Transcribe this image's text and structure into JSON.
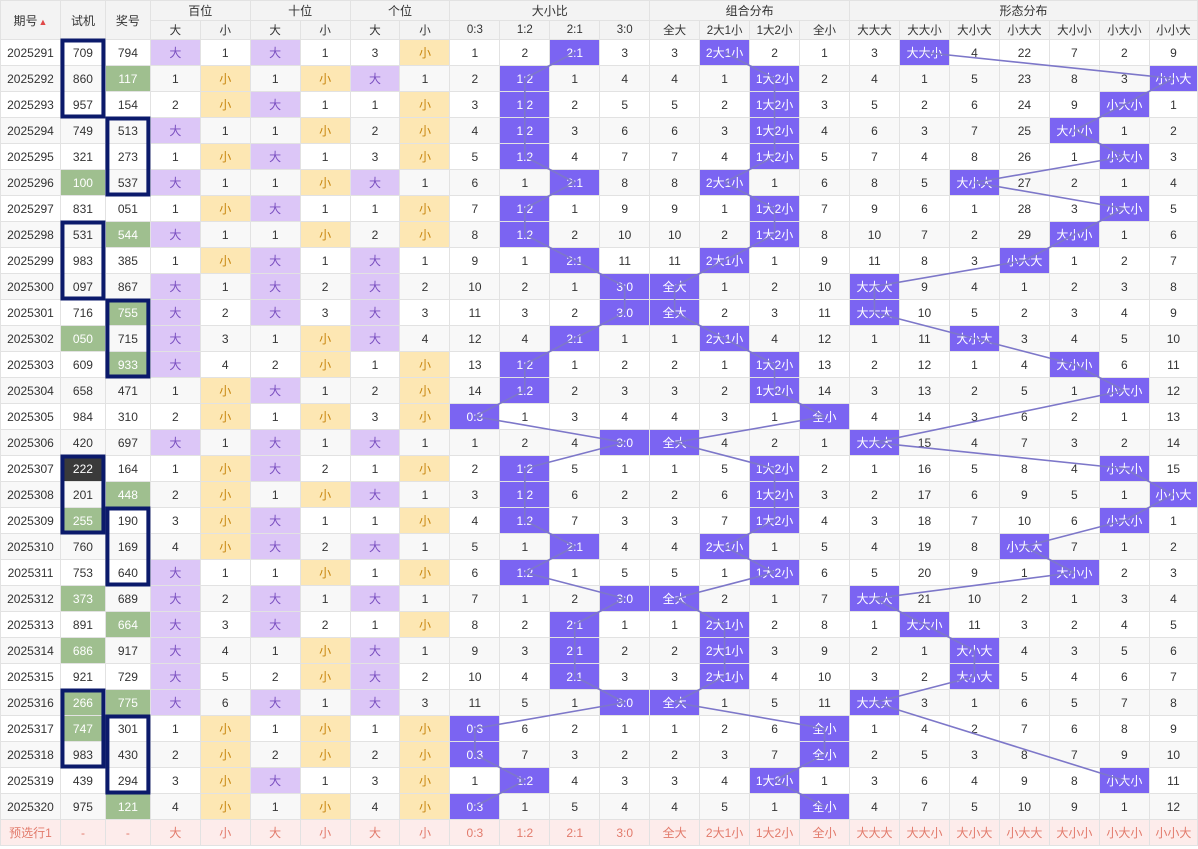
{
  "header": {
    "period": "期号",
    "shiji": "试机",
    "jianghao": "奖号",
    "groups": [
      {
        "name": "百位",
        "span": 2,
        "subs": [
          "大",
          "小"
        ]
      },
      {
        "name": "十位",
        "span": 2,
        "subs": [
          "大",
          "小"
        ]
      },
      {
        "name": "个位",
        "span": 2,
        "subs": [
          "大",
          "小"
        ]
      },
      {
        "name": "大小比",
        "span": 4,
        "subs": [
          "0:3",
          "1:2",
          "2:1",
          "3:0"
        ]
      },
      {
        "name": "组合分布",
        "span": 4,
        "subs": [
          "全大",
          "2大1小",
          "1大2小",
          "全小"
        ]
      },
      {
        "name": "形态分布",
        "span": 7,
        "subs": [
          "大大大",
          "大大小",
          "大小大",
          "小大大",
          "大小小",
          "小大小",
          "小小大"
        ]
      }
    ]
  },
  "rows": [
    {
      "p": "2025291",
      "s": "709",
      "k": "794",
      "sh": null,
      "kh": null,
      "bai": [
        "大",
        "1"
      ],
      "shi": [
        "大",
        "1"
      ],
      "ge": [
        "3",
        "小"
      ],
      "bx": [
        "1",
        "2",
        "2:1",
        "3"
      ],
      "zh": [
        "3",
        "2大1小",
        "2",
        "1"
      ],
      "xt": [
        "3",
        "大大小",
        "4",
        "22",
        "7",
        "2",
        "9"
      ]
    },
    {
      "p": "2025292",
      "s": "860",
      "k": "117",
      "sh": null,
      "kh": "g",
      "bai": [
        "1",
        "小"
      ],
      "shi": [
        "1",
        "小"
      ],
      "ge": [
        "大",
        "1"
      ],
      "bx": [
        "2",
        "1:2",
        "1",
        "4"
      ],
      "zh": [
        "4",
        "1",
        "1大2小",
        "2"
      ],
      "xt": [
        "4",
        "1",
        "5",
        "23",
        "8",
        "3",
        "小小大"
      ]
    },
    {
      "p": "2025293",
      "s": "957",
      "k": "154",
      "sh": null,
      "kh": null,
      "bai": [
        "2",
        "小"
      ],
      "shi": [
        "大",
        "1"
      ],
      "ge": [
        "1",
        "小"
      ],
      "bx": [
        "3",
        "1:2",
        "2",
        "5"
      ],
      "zh": [
        "5",
        "2",
        "1大2小",
        "3"
      ],
      "xt": [
        "5",
        "2",
        "6",
        "24",
        "9",
        "小大小",
        "1"
      ]
    },
    {
      "p": "2025294",
      "s": "749",
      "k": "513",
      "sh": null,
      "kh": null,
      "bai": [
        "大",
        "1"
      ],
      "shi": [
        "1",
        "小"
      ],
      "ge": [
        "2",
        "小"
      ],
      "bx": [
        "4",
        "1:2",
        "3",
        "6"
      ],
      "zh": [
        "6",
        "3",
        "1大2小",
        "4"
      ],
      "xt": [
        "6",
        "3",
        "7",
        "25",
        "大小小",
        "1",
        "2"
      ]
    },
    {
      "p": "2025295",
      "s": "321",
      "k": "273",
      "sh": null,
      "kh": null,
      "bai": [
        "1",
        "小"
      ],
      "shi": [
        "大",
        "1"
      ],
      "ge": [
        "3",
        "小"
      ],
      "bx": [
        "5",
        "1:2",
        "4",
        "7"
      ],
      "zh": [
        "7",
        "4",
        "1大2小",
        "5"
      ],
      "xt": [
        "7",
        "4",
        "8",
        "26",
        "1",
        "小大小",
        "3"
      ]
    },
    {
      "p": "2025296",
      "s": "100",
      "k": "537",
      "sh": "g",
      "kh": null,
      "bai": [
        "大",
        "1"
      ],
      "shi": [
        "1",
        "小"
      ],
      "ge": [
        "大",
        "1"
      ],
      "bx": [
        "6",
        "1",
        "2:1",
        "8"
      ],
      "zh": [
        "8",
        "2大1小",
        "1",
        "6"
      ],
      "xt": [
        "8",
        "5",
        "大小大",
        "27",
        "2",
        "1",
        "4"
      ]
    },
    {
      "p": "2025297",
      "s": "831",
      "k": "051",
      "sh": null,
      "kh": null,
      "bai": [
        "1",
        "小"
      ],
      "shi": [
        "大",
        "1"
      ],
      "ge": [
        "1",
        "小"
      ],
      "bx": [
        "7",
        "1:2",
        "1",
        "9"
      ],
      "zh": [
        "9",
        "1",
        "1大2小",
        "7"
      ],
      "xt": [
        "9",
        "6",
        "1",
        "28",
        "3",
        "小大小",
        "5"
      ]
    },
    {
      "p": "2025298",
      "s": "531",
      "k": "544",
      "sh": null,
      "kh": "g",
      "bai": [
        "大",
        "1"
      ],
      "shi": [
        "1",
        "小"
      ],
      "ge": [
        "2",
        "小"
      ],
      "bx": [
        "8",
        "1:2",
        "2",
        "10"
      ],
      "zh": [
        "10",
        "2",
        "1大2小",
        "8"
      ],
      "xt": [
        "10",
        "7",
        "2",
        "29",
        "大小小",
        "1",
        "6"
      ]
    },
    {
      "p": "2025299",
      "s": "983",
      "k": "385",
      "sh": null,
      "kh": null,
      "bai": [
        "1",
        "小"
      ],
      "shi": [
        "大",
        "1"
      ],
      "ge": [
        "大",
        "1"
      ],
      "bx": [
        "9",
        "1",
        "2:1",
        "11"
      ],
      "zh": [
        "11",
        "2大1小",
        "1",
        "9"
      ],
      "xt": [
        "11",
        "8",
        "3",
        "小大大",
        "1",
        "2",
        "7"
      ]
    },
    {
      "p": "2025300",
      "s": "097",
      "k": "867",
      "sh": null,
      "kh": null,
      "bai": [
        "大",
        "1"
      ],
      "shi": [
        "大",
        "2"
      ],
      "ge": [
        "大",
        "2"
      ],
      "bx": [
        "10",
        "2",
        "1",
        "3:0"
      ],
      "zh": [
        "全大",
        "1",
        "2",
        "10"
      ],
      "xt": [
        "大大大",
        "9",
        "4",
        "1",
        "2",
        "3",
        "8"
      ]
    },
    {
      "p": "2025301",
      "s": "716",
      "k": "755",
      "sh": null,
      "kh": "g",
      "bai": [
        "大",
        "2"
      ],
      "shi": [
        "大",
        "3"
      ],
      "ge": [
        "大",
        "3"
      ],
      "bx": [
        "11",
        "3",
        "2",
        "3:0"
      ],
      "zh": [
        "全大",
        "2",
        "3",
        "11"
      ],
      "xt": [
        "大大大",
        "10",
        "5",
        "2",
        "3",
        "4",
        "9"
      ]
    },
    {
      "p": "2025302",
      "s": "050",
      "k": "715",
      "sh": "g",
      "kh": null,
      "bai": [
        "大",
        "3"
      ],
      "shi": [
        "1",
        "小"
      ],
      "ge": [
        "大",
        "4"
      ],
      "bx": [
        "12",
        "4",
        "2:1",
        "1"
      ],
      "zh": [
        "1",
        "2大1小",
        "4",
        "12"
      ],
      "xt": [
        "1",
        "11",
        "大小大",
        "3",
        "4",
        "5",
        "10"
      ]
    },
    {
      "p": "2025303",
      "s": "609",
      "k": "933",
      "sh": null,
      "kh": "g",
      "bai": [
        "大",
        "4"
      ],
      "shi": [
        "2",
        "小"
      ],
      "ge": [
        "1",
        "小"
      ],
      "bx": [
        "13",
        "1:2",
        "1",
        "2"
      ],
      "zh": [
        "2",
        "1",
        "1大2小",
        "13"
      ],
      "xt": [
        "2",
        "12",
        "1",
        "4",
        "大小小",
        "6",
        "11"
      ]
    },
    {
      "p": "2025304",
      "s": "658",
      "k": "471",
      "sh": null,
      "kh": null,
      "bai": [
        "1",
        "小"
      ],
      "shi": [
        "大",
        "1"
      ],
      "ge": [
        "2",
        "小"
      ],
      "bx": [
        "14",
        "1:2",
        "2",
        "3"
      ],
      "zh": [
        "3",
        "2",
        "1大2小",
        "14"
      ],
      "xt": [
        "3",
        "13",
        "2",
        "5",
        "1",
        "小大小",
        "12"
      ]
    },
    {
      "p": "2025305",
      "s": "984",
      "k": "310",
      "sh": null,
      "kh": null,
      "bai": [
        "2",
        "小"
      ],
      "shi": [
        "1",
        "小"
      ],
      "ge": [
        "3",
        "小"
      ],
      "bx": [
        "0:3",
        "1",
        "3",
        "4"
      ],
      "zh": [
        "4",
        "3",
        "1",
        "全小"
      ],
      "xt": [
        "4",
        "14",
        "3",
        "6",
        "2",
        "1",
        "13"
      ]
    },
    {
      "p": "2025306",
      "s": "420",
      "k": "697",
      "sh": null,
      "kh": null,
      "bai": [
        "大",
        "1"
      ],
      "shi": [
        "大",
        "1"
      ],
      "ge": [
        "大",
        "1"
      ],
      "bx": [
        "1",
        "2",
        "4",
        "3:0"
      ],
      "zh": [
        "全大",
        "4",
        "2",
        "1"
      ],
      "xt": [
        "大大大",
        "15",
        "4",
        "7",
        "3",
        "2",
        "14"
      ]
    },
    {
      "p": "2025307",
      "s": "222",
      "k": "164",
      "sh": "d",
      "kh": null,
      "bai": [
        "1",
        "小"
      ],
      "shi": [
        "大",
        "2"
      ],
      "ge": [
        "1",
        "小"
      ],
      "bx": [
        "2",
        "1:2",
        "5",
        "1"
      ],
      "zh": [
        "1",
        "5",
        "1大2小",
        "2"
      ],
      "xt": [
        "1",
        "16",
        "5",
        "8",
        "4",
        "小大小",
        "15"
      ]
    },
    {
      "p": "2025308",
      "s": "201",
      "k": "448",
      "sh": null,
      "kh": "g",
      "bai": [
        "2",
        "小"
      ],
      "shi": [
        "1",
        "小"
      ],
      "ge": [
        "大",
        "1"
      ],
      "bx": [
        "3",
        "1:2",
        "6",
        "2"
      ],
      "zh": [
        "2",
        "6",
        "1大2小",
        "3"
      ],
      "xt": [
        "2",
        "17",
        "6",
        "9",
        "5",
        "1",
        "小小大"
      ]
    },
    {
      "p": "2025309",
      "s": "255",
      "k": "190",
      "sh": "g",
      "kh": null,
      "bai": [
        "3",
        "小"
      ],
      "shi": [
        "大",
        "1"
      ],
      "ge": [
        "1",
        "小"
      ],
      "bx": [
        "4",
        "1:2",
        "7",
        "3"
      ],
      "zh": [
        "3",
        "7",
        "1大2小",
        "4"
      ],
      "xt": [
        "3",
        "18",
        "7",
        "10",
        "6",
        "小大小",
        "1"
      ]
    },
    {
      "p": "2025310",
      "s": "760",
      "k": "169",
      "sh": null,
      "kh": null,
      "bai": [
        "4",
        "小"
      ],
      "shi": [
        "大",
        "2"
      ],
      "ge": [
        "大",
        "1"
      ],
      "bx": [
        "5",
        "1",
        "2:1",
        "4"
      ],
      "zh": [
        "4",
        "2大1小",
        "1",
        "5"
      ],
      "xt": [
        "4",
        "19",
        "8",
        "小大大",
        "7",
        "1",
        "2"
      ]
    },
    {
      "p": "2025311",
      "s": "753",
      "k": "640",
      "sh": null,
      "kh": null,
      "bai": [
        "大",
        "1"
      ],
      "shi": [
        "1",
        "小"
      ],
      "ge": [
        "1",
        "小"
      ],
      "bx": [
        "6",
        "1:2",
        "1",
        "5"
      ],
      "zh": [
        "5",
        "1",
        "1大2小",
        "6"
      ],
      "xt": [
        "5",
        "20",
        "9",
        "1",
        "大小小",
        "2",
        "3"
      ]
    },
    {
      "p": "2025312",
      "s": "373",
      "k": "689",
      "sh": "g",
      "kh": null,
      "bai": [
        "大",
        "2"
      ],
      "shi": [
        "大",
        "1"
      ],
      "ge": [
        "大",
        "1"
      ],
      "bx": [
        "7",
        "1",
        "2",
        "3:0"
      ],
      "zh": [
        "全大",
        "2",
        "1",
        "7"
      ],
      "xt": [
        "大大大",
        "21",
        "10",
        "2",
        "1",
        "3",
        "4"
      ]
    },
    {
      "p": "2025313",
      "s": "891",
      "k": "664",
      "sh": null,
      "kh": "g",
      "bai": [
        "大",
        "3"
      ],
      "shi": [
        "大",
        "2"
      ],
      "ge": [
        "1",
        "小"
      ],
      "bx": [
        "8",
        "2",
        "2:1",
        "1"
      ],
      "zh": [
        "1",
        "2大1小",
        "2",
        "8"
      ],
      "xt": [
        "1",
        "大大小",
        "11",
        "3",
        "2",
        "4",
        "5"
      ]
    },
    {
      "p": "2025314",
      "s": "686",
      "k": "917",
      "sh": "g",
      "kh": null,
      "bai": [
        "大",
        "4"
      ],
      "shi": [
        "1",
        "小"
      ],
      "ge": [
        "大",
        "1"
      ],
      "bx": [
        "9",
        "3",
        "2:1",
        "2"
      ],
      "zh": [
        "2",
        "2大1小",
        "3",
        "9"
      ],
      "xt": [
        "2",
        "1",
        "大小大",
        "4",
        "3",
        "5",
        "6"
      ]
    },
    {
      "p": "2025315",
      "s": "921",
      "k": "729",
      "sh": null,
      "kh": null,
      "bai": [
        "大",
        "5"
      ],
      "shi": [
        "2",
        "小"
      ],
      "ge": [
        "大",
        "2"
      ],
      "bx": [
        "10",
        "4",
        "2:1",
        "3"
      ],
      "zh": [
        "3",
        "2大1小",
        "4",
        "10"
      ],
      "xt": [
        "3",
        "2",
        "大小大",
        "5",
        "4",
        "6",
        "7"
      ]
    },
    {
      "p": "2025316",
      "s": "266",
      "k": "775",
      "sh": "g",
      "kh": "g",
      "bai": [
        "大",
        "6"
      ],
      "shi": [
        "大",
        "1"
      ],
      "ge": [
        "大",
        "3"
      ],
      "bx": [
        "11",
        "5",
        "1",
        "3:0"
      ],
      "zh": [
        "全大",
        "1",
        "5",
        "11"
      ],
      "xt": [
        "大大大",
        "3",
        "1",
        "6",
        "5",
        "7",
        "8"
      ]
    },
    {
      "p": "2025317",
      "s": "747",
      "k": "301",
      "sh": "g",
      "kh": null,
      "bai": [
        "1",
        "小"
      ],
      "shi": [
        "1",
        "小"
      ],
      "ge": [
        "1",
        "小"
      ],
      "bx": [
        "0:3",
        "6",
        "2",
        "1"
      ],
      "zh": [
        "1",
        "2",
        "6",
        "全小"
      ],
      "xt": [
        "1",
        "4",
        "2",
        "7",
        "6",
        "8",
        "9"
      ]
    },
    {
      "p": "2025318",
      "s": "983",
      "k": "430",
      "sh": null,
      "kh": null,
      "bai": [
        "2",
        "小"
      ],
      "shi": [
        "2",
        "小"
      ],
      "ge": [
        "2",
        "小"
      ],
      "bx": [
        "0:3",
        "7",
        "3",
        "2"
      ],
      "zh": [
        "2",
        "3",
        "7",
        "全小"
      ],
      "xt": [
        "2",
        "5",
        "3",
        "8",
        "7",
        "9",
        "10"
      ]
    },
    {
      "p": "2025319",
      "s": "439",
      "k": "294",
      "sh": null,
      "kh": null,
      "bai": [
        "3",
        "小"
      ],
      "shi": [
        "大",
        "1"
      ],
      "ge": [
        "3",
        "小"
      ],
      "bx": [
        "1",
        "1:2",
        "4",
        "3"
      ],
      "zh": [
        "3",
        "4",
        "1大2小",
        "1"
      ],
      "xt": [
        "3",
        "6",
        "4",
        "9",
        "8",
        "小大小",
        "11"
      ]
    },
    {
      "p": "2025320",
      "s": "975",
      "k": "121",
      "sh": null,
      "kh": "g",
      "bai": [
        "4",
        "小"
      ],
      "shi": [
        "1",
        "小"
      ],
      "ge": [
        "4",
        "小"
      ],
      "bx": [
        "0:3",
        "1",
        "5",
        "4"
      ],
      "zh": [
        "4",
        "5",
        "1",
        "全小"
      ],
      "xt": [
        "4",
        "7",
        "5",
        "10",
        "9",
        "1",
        "12"
      ]
    }
  ],
  "predict": {
    "label": "预选行1",
    "s": "-",
    "k": "-",
    "cells": [
      "大",
      "小",
      "大",
      "小",
      "大",
      "小",
      "0:3",
      "1:2",
      "2:1",
      "3:0",
      "全大",
      "2大1小",
      "1大2小",
      "全小",
      "大大大",
      "大大小",
      "大小大",
      "小大大",
      "大小小",
      "小大小",
      "小小大"
    ]
  },
  "colors": {
    "big_bg": "#dcc6f7",
    "small_bg": "#fde7b3",
    "accent": "#7b64f2",
    "green": "#9fbf8f",
    "dark": "#3a3a3a",
    "box": "#0b1a6b",
    "line": "#7d77c9"
  }
}
